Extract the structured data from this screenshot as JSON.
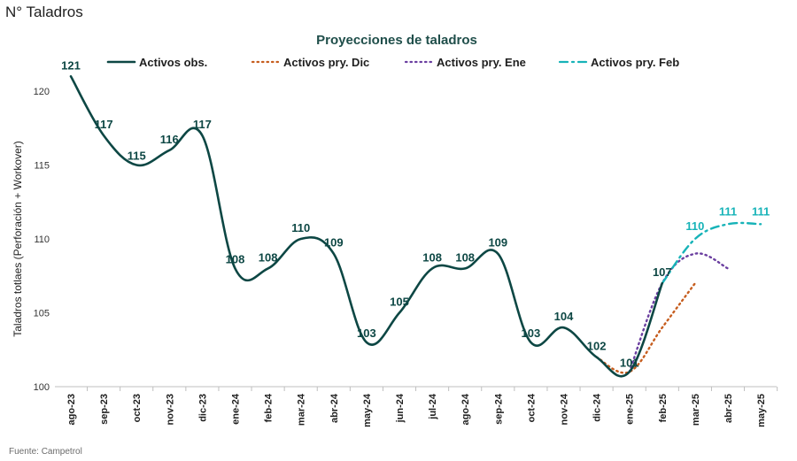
{
  "page_title": "N° Taladros",
  "source": "Fuente: Campetrol",
  "colors": {
    "observed": "#0d4744",
    "pry_dic": "#c65d1e",
    "pry_ene": "#6b3fa0",
    "pry_feb": "#17b3b8"
  },
  "chart_data": {
    "type": "line",
    "title": "Proyecciones de taladros",
    "xlabel": "",
    "ylabel": "Taladros totlaes (Perforación + Workover)",
    "ylim": [
      100,
      121
    ],
    "yticks": [
      100,
      105,
      110,
      115,
      120
    ],
    "legend_position": "top",
    "categories": [
      "ago-23",
      "sep-23",
      "oct-23",
      "nov-23",
      "dic-23",
      "ene-24",
      "feb-24",
      "mar-24",
      "abr-24",
      "may-24",
      "jun-24",
      "jul-24",
      "ago-24",
      "sep-24",
      "oct-24",
      "nov-24",
      "dic-24",
      "ene-25",
      "feb-25",
      "mar-25",
      "abr-25",
      "may-25"
    ],
    "series": [
      {
        "name": "Activos obs.",
        "style": "solid",
        "values": [
          121,
          117,
          115,
          116,
          117,
          108,
          108,
          110,
          109,
          103,
          105,
          108,
          108,
          109,
          103,
          104,
          102,
          101,
          107,
          null,
          null,
          null
        ],
        "labels": [
          "121",
          "117",
          "115",
          "116",
          "117",
          "108",
          "108",
          "110",
          "109",
          "103",
          "105",
          "108",
          "108",
          "109",
          "103",
          "104",
          "102",
          "101",
          "107",
          null,
          null,
          null
        ]
      },
      {
        "name": "Activos pry. Dic",
        "style": "dotted",
        "values": [
          null,
          null,
          null,
          null,
          null,
          null,
          null,
          null,
          null,
          null,
          null,
          null,
          null,
          null,
          null,
          null,
          102,
          101,
          104,
          107,
          null,
          null
        ],
        "labels": []
      },
      {
        "name": "Activos pry. Ene",
        "style": "dotted",
        "values": [
          null,
          null,
          null,
          null,
          null,
          null,
          null,
          null,
          null,
          null,
          null,
          null,
          null,
          null,
          null,
          null,
          null,
          101,
          107,
          109,
          108,
          null
        ],
        "labels": []
      },
      {
        "name": "Activos pry. Feb",
        "style": "dashdot",
        "values": [
          null,
          null,
          null,
          null,
          null,
          null,
          null,
          null,
          null,
          null,
          null,
          null,
          null,
          null,
          null,
          null,
          null,
          null,
          107,
          110,
          111,
          111
        ],
        "labels": [
          null,
          null,
          null,
          null,
          null,
          null,
          null,
          null,
          null,
          null,
          null,
          null,
          null,
          null,
          null,
          null,
          null,
          null,
          null,
          "110",
          "111",
          "111"
        ]
      }
    ]
  }
}
